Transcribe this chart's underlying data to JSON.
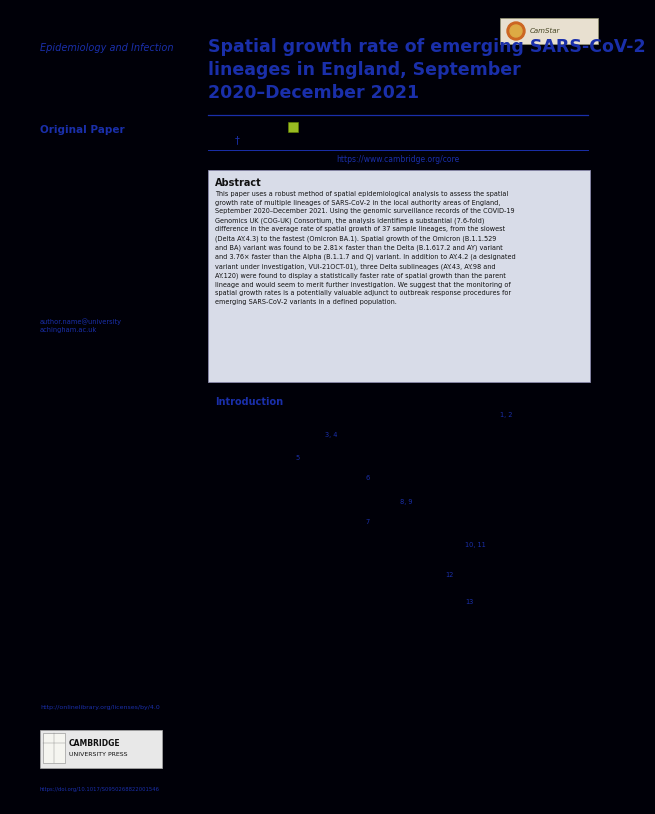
{
  "bg_color": "#000008",
  "title": "Spatial growth rate of emerging SARS-CoV-2\nlineages in England, September\n2020–December 2021",
  "journal": "Epidemiology and Infection",
  "section": "Original Paper",
  "title_color": "#1a2faa",
  "journal_color": "#1a2faa",
  "section_color": "#1a2faa",
  "abstract_title": "Abstract",
  "abstract_text": "This paper uses a robust method of spatial epidemiological analysis to assess the spatial\ngrowth rate of multiple lineages of SARS-CoV-2 in the local authority areas of England,\nSeptember 2020–December 2021. Using the genomic surveillance records of the COVID-19\nGenomics UK (COG-UK) Consortium, the analysis identifies a substantial (7.6-fold)\ndifference in the average rate of spatial growth of 37 sample lineages, from the slowest\n(Delta AY.4.3) to the fastest (Omicron BA.1). Spatial growth of the Omicron (B.1.1.529\nand BA) variant was found to be 2.81× faster than the Delta (B.1.617.2 and AY) variant\nand 3.76× faster than the Alpha (B.1.1.7 and Q) variant. In addition to AY.4.2 (a designated\nvariant under investigation, VUI-21OCT-01), three Delta sublineages (AY.43, AY.98 and\nAY.120) were found to display a statistically faster rate of spatial growth than the parent\nlineage and would seem to merit further investigation. We suggest that the monitoring of\nspatial growth rates is a potentially valuable adjunct to outbreak response procedures for\nemerging SARS-CoV-2 variants in a defined population.",
  "intro_label": "Introduction",
  "line_color": "#1a2faa",
  "abstract_bg": "#d8dce8",
  "abstract_border": "#8888aa",
  "text_dark": "#111111",
  "blue_link": "#1a2faa",
  "ref_positions": [
    [
      490,
      405,
      "1, 2"
    ],
    [
      315,
      425,
      "3, 4"
    ],
    [
      285,
      448,
      "5"
    ],
    [
      355,
      468,
      "6"
    ],
    [
      390,
      492,
      "8, 9"
    ],
    [
      355,
      512,
      "7"
    ],
    [
      455,
      535,
      "10, 11"
    ],
    [
      435,
      565,
      "12"
    ],
    [
      455,
      592,
      "13"
    ]
  ],
  "doi_text": "https://doi.org/10.1017/S0950268822001546",
  "link_url": "https://www.cambridge.org/core",
  "author_email": "author.name@university\nachingham.ac.uk",
  "camstar_color": "#cc8844",
  "green_sq_color": "#99bb22"
}
